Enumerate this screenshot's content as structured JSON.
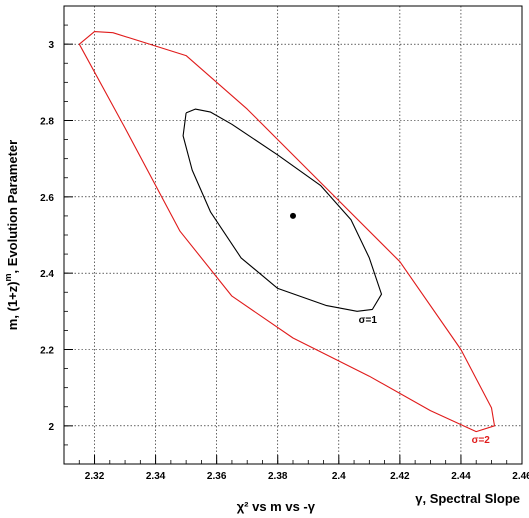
{
  "chart_data": {
    "type": "line",
    "xlabel": "γ, Spectral Slope",
    "ylabel": "m, (1+z)",
    "ylabel_sup": "m",
    "ylabel_suffix": ", Evolution Parameter",
    "title": "χ² vs m vs -γ",
    "xlim": [
      2.31,
      2.46
    ],
    "ylim": [
      1.9,
      3.1
    ],
    "x_ticks": [
      2.32,
      2.34,
      2.36,
      2.38,
      2.4,
      2.42,
      2.44,
      2.46
    ],
    "x_tick_labels": [
      "2.32",
      "2.34",
      "2.36",
      "2.38",
      "2.4",
      "2.42",
      "2.44",
      "2.46"
    ],
    "y_ticks": [
      2,
      2.2,
      2.4,
      2.6,
      2.8,
      3
    ],
    "y_tick_labels": [
      "2",
      "2.2",
      "2.4",
      "2.6",
      "2.8",
      "3"
    ],
    "grid": true,
    "best_fit": {
      "x": 2.385,
      "y": 2.55
    },
    "series": [
      {
        "name": "σ=1",
        "color": "#000000",
        "points": [
          [
            2.35,
            2.82
          ],
          [
            2.353,
            2.83
          ],
          [
            2.358,
            2.822
          ],
          [
            2.365,
            2.79
          ],
          [
            2.38,
            2.71
          ],
          [
            2.394,
            2.63
          ],
          [
            2.404,
            2.54
          ],
          [
            2.41,
            2.44
          ],
          [
            2.414,
            2.345
          ],
          [
            2.411,
            2.305
          ],
          [
            2.406,
            2.3
          ],
          [
            2.396,
            2.315
          ],
          [
            2.38,
            2.36
          ],
          [
            2.368,
            2.44
          ],
          [
            2.358,
            2.56
          ],
          [
            2.352,
            2.67
          ],
          [
            2.349,
            2.76
          ],
          [
            2.35,
            2.82
          ]
        ]
      },
      {
        "name": "σ=2",
        "color": "#e01b1b",
        "points": [
          [
            2.315,
            3.0
          ],
          [
            2.32,
            3.033
          ],
          [
            2.326,
            3.03
          ],
          [
            2.35,
            2.97
          ],
          [
            2.37,
            2.83
          ],
          [
            2.395,
            2.63
          ],
          [
            2.42,
            2.43
          ],
          [
            2.44,
            2.2
          ],
          [
            2.45,
            2.047
          ],
          [
            2.451,
            2.0
          ],
          [
            2.445,
            1.985
          ],
          [
            2.43,
            2.04
          ],
          [
            2.41,
            2.13
          ],
          [
            2.385,
            2.23
          ],
          [
            2.365,
            2.34
          ],
          [
            2.348,
            2.51
          ],
          [
            2.33,
            2.78
          ],
          [
            2.315,
            3.0
          ]
        ]
      }
    ]
  }
}
